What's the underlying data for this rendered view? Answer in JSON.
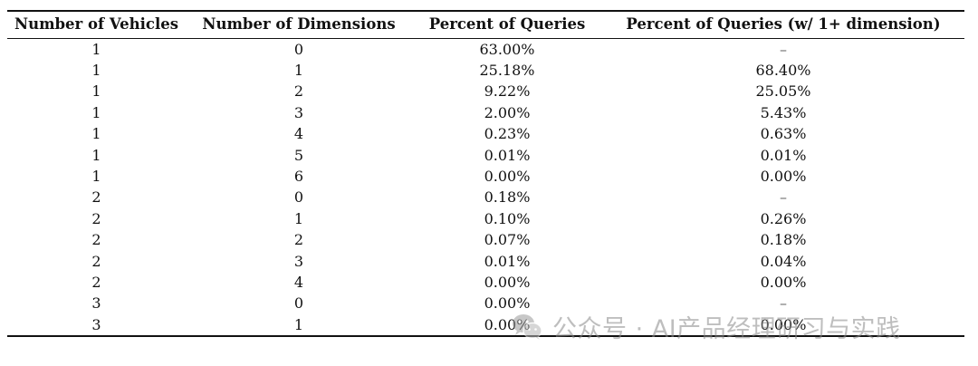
{
  "table": {
    "headers": [
      "Number of Vehicles",
      "Number of Dimensions",
      "Percent of Queries",
      "Percent of Queries (w/ 1+ dimension)"
    ],
    "rows": [
      [
        "1",
        "0",
        "63.00%",
        "–"
      ],
      [
        "1",
        "1",
        "25.18%",
        "68.40%"
      ],
      [
        "1",
        "2",
        "9.22%",
        "25.05%"
      ],
      [
        "1",
        "3",
        "2.00%",
        "5.43%"
      ],
      [
        "1",
        "4",
        "0.23%",
        "0.63%"
      ],
      [
        "1",
        "5",
        "0.01%",
        "0.01%"
      ],
      [
        "1",
        "6",
        "0.00%",
        "0.00%"
      ],
      [
        "2",
        "0",
        "0.18%",
        "–"
      ],
      [
        "2",
        "1",
        "0.10%",
        "0.26%"
      ],
      [
        "2",
        "2",
        "0.07%",
        "0.18%"
      ],
      [
        "2",
        "3",
        "0.01%",
        "0.04%"
      ],
      [
        "2",
        "4",
        "0.00%",
        "0.00%"
      ],
      [
        "3",
        "0",
        "0.00%",
        "–"
      ],
      [
        "3",
        "1",
        "0.00%",
        "0.00%"
      ]
    ]
  },
  "watermark": {
    "text": "公众号 · AI产品经理研习与实践",
    "icon": "wechat-logo-icon",
    "color": "#8a8a8a"
  }
}
